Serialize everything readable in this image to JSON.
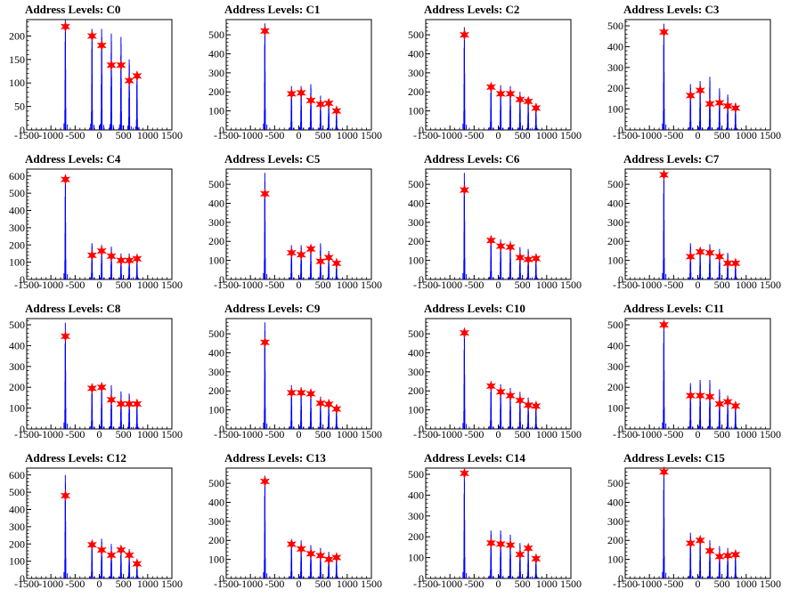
{
  "chart_data": [
    {
      "type": "histogram",
      "title": "Address Levels: C0",
      "xlim": [
        -1500,
        1500
      ],
      "ylim": [
        0,
        235
      ],
      "xticks": [
        -1500,
        -1000,
        -500,
        0,
        500,
        1000,
        1500
      ],
      "yticks": [
        0,
        50,
        100,
        150,
        200
      ],
      "peaks": [
        {
          "x": -700,
          "y": 220,
          "h": 235
        },
        {
          "x": -150,
          "y": 200,
          "h": 215
        },
        {
          "x": 50,
          "y": 180,
          "h": 215
        },
        {
          "x": 250,
          "y": 138,
          "h": 205
        },
        {
          "x": 450,
          "y": 138,
          "h": 198
        },
        {
          "x": 620,
          "y": 105,
          "h": 150
        },
        {
          "x": 780,
          "y": 115,
          "h": 120
        }
      ]
    },
    {
      "type": "histogram",
      "title": "Address Levels: C1",
      "xlim": [
        -1500,
        1500
      ],
      "ylim": [
        0,
        580
      ],
      "xticks": [
        -1500,
        -1000,
        -500,
        0,
        500,
        1000,
        1500
      ],
      "yticks": [
        0,
        100,
        200,
        300,
        400,
        500
      ],
      "peaks": [
        {
          "x": -700,
          "y": 520,
          "h": 560
        },
        {
          "x": -150,
          "y": 190,
          "h": 230
        },
        {
          "x": 50,
          "y": 195,
          "h": 230
        },
        {
          "x": 250,
          "y": 155,
          "h": 240
        },
        {
          "x": 450,
          "y": 135,
          "h": 180
        },
        {
          "x": 620,
          "y": 140,
          "h": 160
        },
        {
          "x": 780,
          "y": 100,
          "h": 110
        }
      ]
    },
    {
      "type": "histogram",
      "title": "Address Levels: C2",
      "xlim": [
        -1500,
        1500
      ],
      "ylim": [
        0,
        580
      ],
      "xticks": [
        -1500,
        -1000,
        -500,
        0,
        500,
        1000,
        1500
      ],
      "yticks": [
        0,
        100,
        200,
        300,
        400,
        500
      ],
      "peaks": [
        {
          "x": -700,
          "y": 500,
          "h": 540
        },
        {
          "x": -150,
          "y": 225,
          "h": 240
        },
        {
          "x": 50,
          "y": 190,
          "h": 235
        },
        {
          "x": 250,
          "y": 190,
          "h": 230
        },
        {
          "x": 450,
          "y": 160,
          "h": 200
        },
        {
          "x": 620,
          "y": 150,
          "h": 170
        },
        {
          "x": 780,
          "y": 115,
          "h": 130
        }
      ]
    },
    {
      "type": "histogram",
      "title": "Address Levels: C3",
      "xlim": [
        -1500,
        1500
      ],
      "ylim": [
        0,
        530
      ],
      "xticks": [
        -1500,
        -1000,
        -500,
        0,
        500,
        1000,
        1500
      ],
      "yticks": [
        0,
        100,
        200,
        300,
        400,
        500
      ],
      "peaks": [
        {
          "x": -700,
          "y": 470,
          "h": 510
        },
        {
          "x": -150,
          "y": 165,
          "h": 220
        },
        {
          "x": 50,
          "y": 190,
          "h": 235
        },
        {
          "x": 250,
          "y": 125,
          "h": 255
        },
        {
          "x": 450,
          "y": 130,
          "h": 200
        },
        {
          "x": 620,
          "y": 115,
          "h": 170
        },
        {
          "x": 780,
          "y": 105,
          "h": 130
        }
      ]
    },
    {
      "type": "histogram",
      "title": "Address Levels: C4",
      "xlim": [
        -1500,
        1500
      ],
      "ylim": [
        0,
        640
      ],
      "xticks": [
        -1500,
        -1000,
        -500,
        0,
        500,
        1000,
        1500
      ],
      "yticks": [
        0,
        100,
        200,
        300,
        400,
        500,
        600
      ],
      "peaks": [
        {
          "x": -700,
          "y": 580,
          "h": 600
        },
        {
          "x": -150,
          "y": 140,
          "h": 210
        },
        {
          "x": 50,
          "y": 165,
          "h": 200
        },
        {
          "x": 250,
          "y": 135,
          "h": 190
        },
        {
          "x": 450,
          "y": 110,
          "h": 150
        },
        {
          "x": 620,
          "y": 110,
          "h": 150
        },
        {
          "x": 780,
          "y": 120,
          "h": 125
        }
      ]
    },
    {
      "type": "histogram",
      "title": "Address Levels: C5",
      "xlim": [
        -1500,
        1500
      ],
      "ylim": [
        0,
        580
      ],
      "xticks": [
        -1500,
        -1000,
        -500,
        0,
        500,
        1000,
        1500
      ],
      "yticks": [
        0,
        100,
        200,
        300,
        400,
        500
      ],
      "peaks": [
        {
          "x": -700,
          "y": 450,
          "h": 560
        },
        {
          "x": -150,
          "y": 140,
          "h": 180
        },
        {
          "x": 50,
          "y": 130,
          "h": 180
        },
        {
          "x": 250,
          "y": 160,
          "h": 175
        },
        {
          "x": 450,
          "y": 95,
          "h": 190
        },
        {
          "x": 620,
          "y": 115,
          "h": 150
        },
        {
          "x": 780,
          "y": 85,
          "h": 100
        }
      ]
    },
    {
      "type": "histogram",
      "title": "Address Levels: C6",
      "xlim": [
        -1500,
        1500
      ],
      "ylim": [
        0,
        580
      ],
      "xticks": [
        -1500,
        -1000,
        -500,
        0,
        500,
        1000,
        1500
      ],
      "yticks": [
        0,
        100,
        200,
        300,
        400,
        500
      ],
      "peaks": [
        {
          "x": -700,
          "y": 470,
          "h": 560
        },
        {
          "x": -150,
          "y": 205,
          "h": 230
        },
        {
          "x": 50,
          "y": 175,
          "h": 210
        },
        {
          "x": 250,
          "y": 170,
          "h": 200
        },
        {
          "x": 450,
          "y": 115,
          "h": 170
        },
        {
          "x": 620,
          "y": 105,
          "h": 160
        },
        {
          "x": 780,
          "y": 110,
          "h": 120
        }
      ]
    },
    {
      "type": "histogram",
      "title": "Address Levels: C7",
      "xlim": [
        -1500,
        1500
      ],
      "ylim": [
        0,
        580
      ],
      "xticks": [
        -1500,
        -1000,
        -500,
        0,
        500,
        1000,
        1500
      ],
      "yticks": [
        0,
        100,
        200,
        300,
        400,
        500
      ],
      "peaks": [
        {
          "x": -700,
          "y": 550,
          "h": 565
        },
        {
          "x": -150,
          "y": 120,
          "h": 190
        },
        {
          "x": 50,
          "y": 145,
          "h": 160
        },
        {
          "x": 250,
          "y": 140,
          "h": 185
        },
        {
          "x": 450,
          "y": 120,
          "h": 160
        },
        {
          "x": 620,
          "y": 85,
          "h": 140
        },
        {
          "x": 780,
          "y": 85,
          "h": 100
        }
      ]
    },
    {
      "type": "histogram",
      "title": "Address Levels: C8",
      "xlim": [
        -1500,
        1500
      ],
      "ylim": [
        0,
        530
      ],
      "xticks": [
        -1500,
        -1000,
        -500,
        0,
        500,
        1000,
        1500
      ],
      "yticks": [
        0,
        100,
        200,
        300,
        400,
        500
      ],
      "peaks": [
        {
          "x": -700,
          "y": 445,
          "h": 510
        },
        {
          "x": -150,
          "y": 195,
          "h": 210
        },
        {
          "x": 50,
          "y": 200,
          "h": 220
        },
        {
          "x": 250,
          "y": 140,
          "h": 210
        },
        {
          "x": 450,
          "y": 120,
          "h": 180
        },
        {
          "x": 620,
          "y": 120,
          "h": 170
        },
        {
          "x": 780,
          "y": 120,
          "h": 130
        }
      ]
    },
    {
      "type": "histogram",
      "title": "Address Levels: C9",
      "xlim": [
        -1500,
        1500
      ],
      "ylim": [
        0,
        580
      ],
      "xticks": [
        -1500,
        -1000,
        -500,
        0,
        500,
        1000,
        1500
      ],
      "yticks": [
        0,
        100,
        200,
        300,
        400,
        500
      ],
      "peaks": [
        {
          "x": -700,
          "y": 455,
          "h": 560
        },
        {
          "x": -150,
          "y": 190,
          "h": 230
        },
        {
          "x": 50,
          "y": 190,
          "h": 220
        },
        {
          "x": 250,
          "y": 185,
          "h": 200
        },
        {
          "x": 450,
          "y": 135,
          "h": 170
        },
        {
          "x": 620,
          "y": 130,
          "h": 150
        },
        {
          "x": 780,
          "y": 105,
          "h": 120
        }
      ]
    },
    {
      "type": "histogram",
      "title": "Address Levels: C10",
      "xlim": [
        -1500,
        1500
      ],
      "ylim": [
        0,
        580
      ],
      "xticks": [
        -1500,
        -1000,
        -500,
        0,
        500,
        1000,
        1500
      ],
      "yticks": [
        0,
        100,
        200,
        300,
        400,
        500
      ],
      "peaks": [
        {
          "x": -700,
          "y": 505,
          "h": 520
        },
        {
          "x": -150,
          "y": 225,
          "h": 240
        },
        {
          "x": 50,
          "y": 195,
          "h": 235
        },
        {
          "x": 250,
          "y": 175,
          "h": 215
        },
        {
          "x": 450,
          "y": 150,
          "h": 195
        },
        {
          "x": 620,
          "y": 125,
          "h": 165
        },
        {
          "x": 780,
          "y": 120,
          "h": 130
        }
      ]
    },
    {
      "type": "histogram",
      "title": "Address Levels: C11",
      "xlim": [
        -1500,
        1500
      ],
      "ylim": [
        0,
        530
      ],
      "xticks": [
        -1500,
        -1000,
        -500,
        0,
        500,
        1000,
        1500
      ],
      "yticks": [
        0,
        100,
        200,
        300,
        400,
        500
      ],
      "peaks": [
        {
          "x": -700,
          "y": 500,
          "h": 515
        },
        {
          "x": -150,
          "y": 160,
          "h": 220
        },
        {
          "x": 50,
          "y": 160,
          "h": 235
        },
        {
          "x": 250,
          "y": 155,
          "h": 235
        },
        {
          "x": 450,
          "y": 120,
          "h": 190
        },
        {
          "x": 620,
          "y": 130,
          "h": 160
        },
        {
          "x": 780,
          "y": 110,
          "h": 120
        }
      ]
    },
    {
      "type": "histogram",
      "title": "Address Levels: C12",
      "xlim": [
        -1500,
        1500
      ],
      "ylim": [
        0,
        640
      ],
      "xticks": [
        -1500,
        -1000,
        -500,
        0,
        500,
        1000,
        1500
      ],
      "yticks": [
        0,
        100,
        200,
        300,
        400,
        500,
        600
      ],
      "peaks": [
        {
          "x": -700,
          "y": 480,
          "h": 600
        },
        {
          "x": -150,
          "y": 195,
          "h": 210
        },
        {
          "x": 50,
          "y": 165,
          "h": 230
        },
        {
          "x": 250,
          "y": 135,
          "h": 200
        },
        {
          "x": 450,
          "y": 165,
          "h": 170
        },
        {
          "x": 620,
          "y": 135,
          "h": 170
        },
        {
          "x": 780,
          "y": 85,
          "h": 100
        }
      ]
    },
    {
      "type": "histogram",
      "title": "Address Levels: C13",
      "xlim": [
        -1500,
        1500
      ],
      "ylim": [
        0,
        580
      ],
      "xticks": [
        -1500,
        -1000,
        -500,
        0,
        500,
        1000,
        1500
      ],
      "yticks": [
        0,
        100,
        200,
        300,
        400,
        500
      ],
      "peaks": [
        {
          "x": -700,
          "y": 510,
          "h": 540
        },
        {
          "x": -150,
          "y": 180,
          "h": 195
        },
        {
          "x": 50,
          "y": 155,
          "h": 200
        },
        {
          "x": 250,
          "y": 130,
          "h": 175
        },
        {
          "x": 450,
          "y": 120,
          "h": 160
        },
        {
          "x": 620,
          "y": 100,
          "h": 140
        },
        {
          "x": 780,
          "y": 110,
          "h": 120
        }
      ]
    },
    {
      "type": "histogram",
      "title": "Address Levels: C14",
      "xlim": [
        -1500,
        1500
      ],
      "ylim": [
        0,
        530
      ],
      "xticks": [
        -1500,
        -1000,
        -500,
        0,
        500,
        1000,
        1500
      ],
      "yticks": [
        0,
        100,
        200,
        300,
        400,
        500
      ],
      "peaks": [
        {
          "x": -700,
          "y": 505,
          "h": 510
        },
        {
          "x": -150,
          "y": 170,
          "h": 230
        },
        {
          "x": 50,
          "y": 165,
          "h": 230
        },
        {
          "x": 250,
          "y": 160,
          "h": 210
        },
        {
          "x": 450,
          "y": 115,
          "h": 170
        },
        {
          "x": 620,
          "y": 145,
          "h": 160
        },
        {
          "x": 780,
          "y": 95,
          "h": 110
        }
      ]
    },
    {
      "type": "histogram",
      "title": "Address Levels: C15",
      "xlim": [
        -1500,
        1500
      ],
      "ylim": [
        0,
        580
      ],
      "xticks": [
        -1500,
        -1000,
        -500,
        0,
        500,
        1000,
        1500
      ],
      "yticks": [
        0,
        100,
        200,
        300,
        400,
        500
      ],
      "peaks": [
        {
          "x": -700,
          "y": 560,
          "h": 580
        },
        {
          "x": -150,
          "y": 185,
          "h": 240
        },
        {
          "x": 50,
          "y": 200,
          "h": 210
        },
        {
          "x": 250,
          "y": 145,
          "h": 200
        },
        {
          "x": 450,
          "y": 115,
          "h": 170
        },
        {
          "x": 620,
          "y": 120,
          "h": 160
        },
        {
          "x": 780,
          "y": 125,
          "h": 130
        }
      ]
    }
  ],
  "colors": {
    "histogram_line": "#0000ff",
    "peak_marker": "#ff0000",
    "axis": "#000000"
  }
}
